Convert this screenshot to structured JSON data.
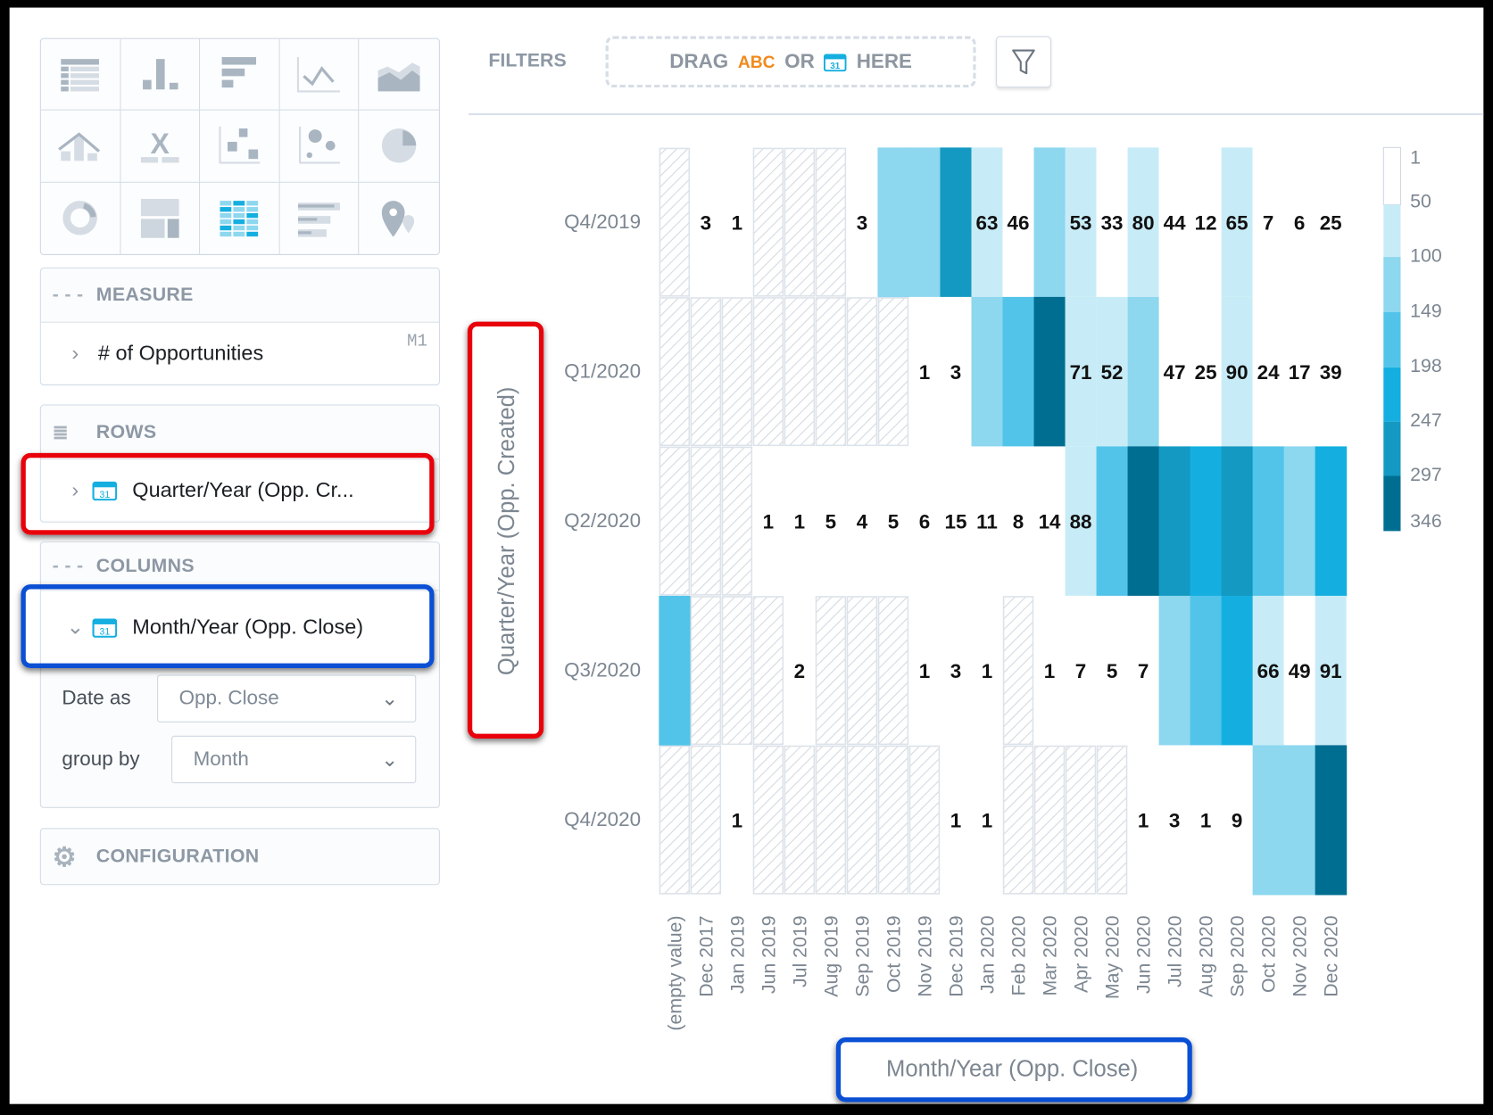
{
  "chart_types": [
    {
      "name": "table"
    },
    {
      "name": "column"
    },
    {
      "name": "bar"
    },
    {
      "name": "line"
    },
    {
      "name": "area"
    },
    {
      "name": "combo"
    },
    {
      "name": "headline"
    },
    {
      "name": "scatter"
    },
    {
      "name": "bubble"
    },
    {
      "name": "pie"
    },
    {
      "name": "donut"
    },
    {
      "name": "treemap"
    },
    {
      "name": "heatmap",
      "active": true
    },
    {
      "name": "bullet"
    },
    {
      "name": "geo"
    }
  ],
  "measure": {
    "title": "MEASURE",
    "item": "# of Opportunities",
    "badge": "M1"
  },
  "rows": {
    "title": "ROWS",
    "item": "Quarter/Year (Opp. Cr..."
  },
  "columns": {
    "title": "COLUMNS",
    "item": "Month/Year (Opp. Close)",
    "date_as_label": "Date as",
    "date_as_value": "Opp. Close",
    "group_by_label": "group by",
    "group_by_value": "Month"
  },
  "configuration": {
    "title": "CONFIGURATION"
  },
  "filters": {
    "label": "FILTERS",
    "drag": "DRAG",
    "abc": "ABC",
    "or": "OR",
    "here": "HERE"
  },
  "colors": {
    "highlight_rows": "#e8000b",
    "highlight_columns": "#0a4fd4",
    "accent": "#14afe0",
    "abc": "#f18a1d"
  },
  "chart_data": {
    "type": "heatmap",
    "xlabel": "Month/Year (Opp. Close)",
    "ylabel": "Quarter/Year (Opp. Created)",
    "x": [
      "(empty value)",
      "Dec 2017",
      "Jan 2019",
      "Jun 2019",
      "Jul 2019",
      "Aug 2019",
      "Sep 2019",
      "Oct 2019",
      "Nov 2019",
      "Dec 2019",
      "Jan 2020",
      "Feb 2020",
      "Mar 2020",
      "Apr 2020",
      "May 2020",
      "Jun 2020",
      "Jul 2020",
      "Aug 2020",
      "Sep 2020",
      "Oct 2020",
      "Nov 2020",
      "Dec 2020"
    ],
    "y": [
      "Q4/2019",
      "Q1/2020",
      "Q2/2020",
      "Q3/2020",
      "Q4/2020"
    ],
    "cell_note": "number = labeled value; 'h' = no data (hatched); range string = unlabeled cell colored in that legend bucket",
    "values": [
      [
        "h",
        3,
        1,
        "h",
        "h",
        "h",
        3,
        "100-149",
        "100-149",
        "247-297",
        63,
        46,
        "100-149",
        53,
        33,
        80,
        44,
        12,
        65,
        7,
        6,
        25
      ],
      [
        "h",
        "h",
        "h",
        "h",
        "h",
        "h",
        "h",
        "h",
        1,
        3,
        "100-149",
        "149-198",
        "297-346",
        71,
        52,
        "100-149",
        47,
        25,
        90,
        24,
        17,
        39
      ],
      [
        "h",
        "h",
        "h",
        1,
        1,
        5,
        4,
        5,
        6,
        15,
        11,
        8,
        14,
        88,
        "149-198",
        "297-346",
        "247-297",
        "198-247",
        "247-297",
        "149-198",
        "100-149",
        "198-247"
      ],
      [
        "149-198",
        "h",
        "h",
        "h",
        2,
        "h",
        "h",
        "h",
        1,
        3,
        1,
        "h",
        1,
        7,
        5,
        7,
        "100-149",
        "149-198",
        "198-247",
        66,
        49,
        91
      ],
      [
        "h",
        "h",
        1,
        "h",
        "h",
        "h",
        "h",
        "h",
        "h",
        1,
        1,
        "h",
        "h",
        "h",
        "h",
        1,
        3,
        1,
        9,
        "100-149",
        "100-149",
        "297-346"
      ]
    ],
    "legend": {
      "labels": [
        "1",
        "50",
        "100",
        "149",
        "198",
        "247",
        "297",
        "346"
      ],
      "buckets": [
        {
          "range": "1-50",
          "color": "#ffffff"
        },
        {
          "range": "50-100",
          "color": "#c8ecf7"
        },
        {
          "range": "100-149",
          "color": "#8dd7ef"
        },
        {
          "range": "149-198",
          "color": "#52c4e9"
        },
        {
          "range": "198-247",
          "color": "#14afe0"
        },
        {
          "range": "247-297",
          "color": "#1499c2"
        },
        {
          "range": "297-346",
          "color": "#006e91"
        }
      ]
    }
  }
}
